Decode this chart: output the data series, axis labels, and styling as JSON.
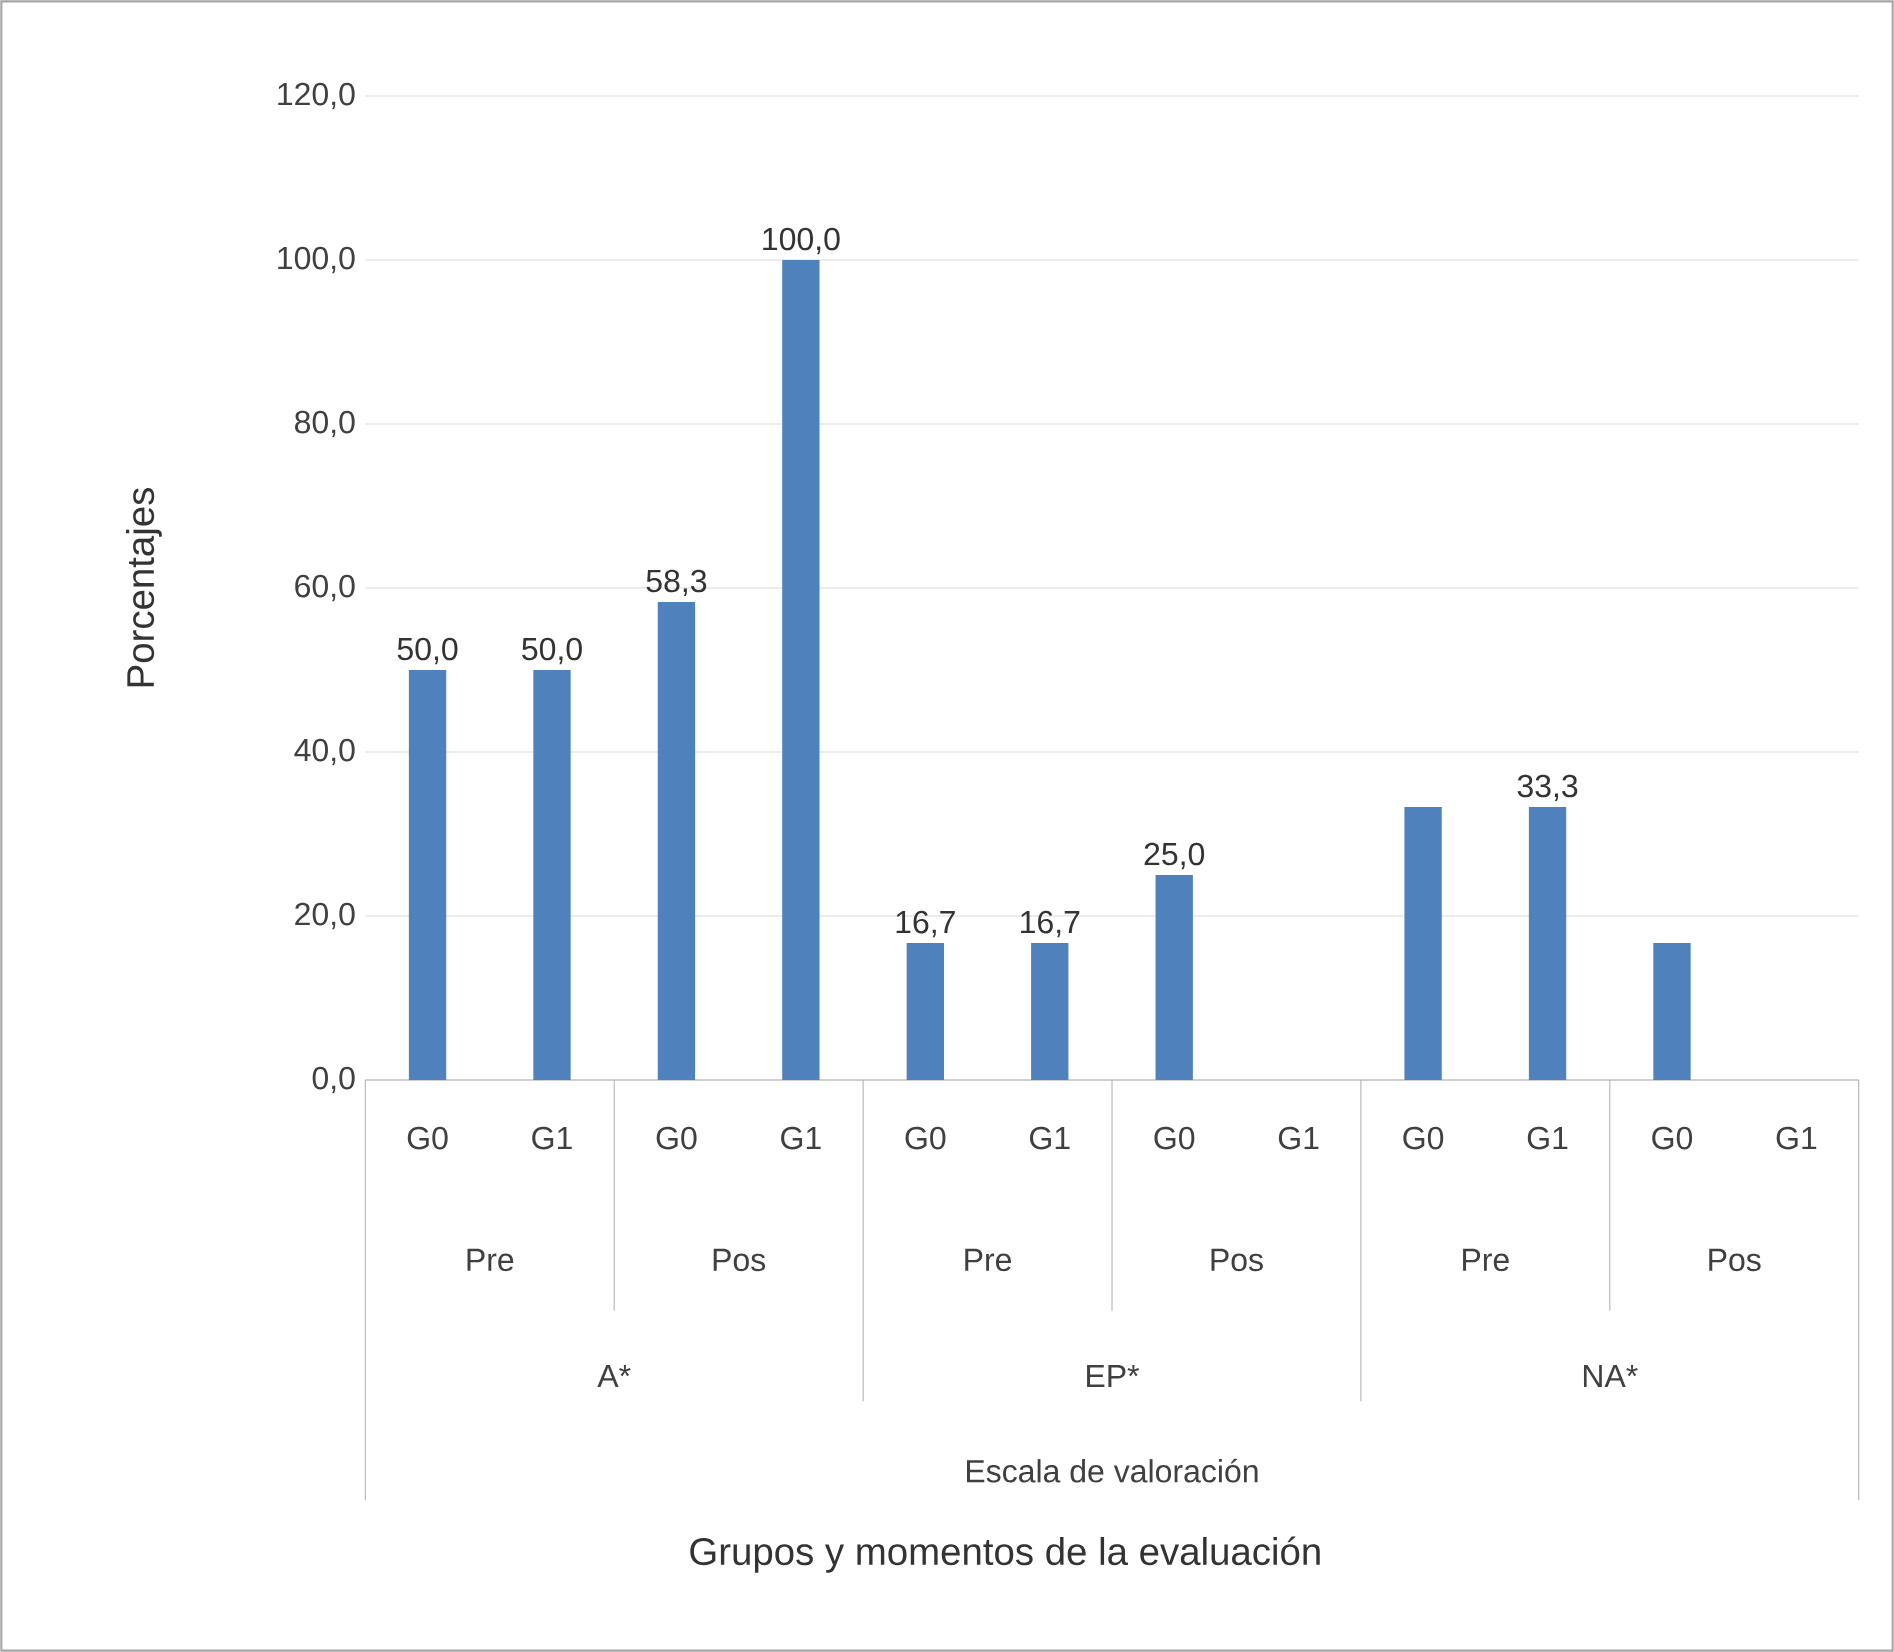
{
  "chart_data": {
    "type": "bar",
    "ylabel": "Porcentajes",
    "categories": [
      "G0",
      "G1",
      "G0",
      "G1",
      "G0",
      "G1",
      "G0",
      "G1",
      "G0",
      "G1",
      "G0",
      "G1"
    ],
    "values": [
      50.0,
      50.0,
      58.3,
      100.0,
      16.7,
      16.7,
      25.0,
      0,
      33.3,
      33.3,
      16.7,
      0
    ],
    "value_labels": [
      "50,0",
      "50,0",
      "58,3",
      "100,0",
      "16,7",
      "16,7",
      "25,0",
      null,
      null,
      "33,3",
      null,
      null
    ],
    "color": "#4f81bd",
    "ylim": [
      0,
      120
    ],
    "yticks": [
      {
        "value": 0,
        "label": "0,0"
      },
      {
        "value": 20,
        "label": "20,0"
      },
      {
        "value": 40,
        "label": "40,0"
      },
      {
        "value": 60,
        "label": "60,0"
      },
      {
        "value": 80,
        "label": "80,0"
      },
      {
        "value": 100,
        "label": "100,0"
      },
      {
        "value": 120,
        "label": "120,0"
      }
    ],
    "grid": "y",
    "annotations": [
      "Pre",
      "Pos",
      "Pre",
      "Pos",
      "Pre",
      "Pos",
      "A*",
      "EP*",
      "NA*",
      "Escala de valoración",
      "Grupos y momentos de la evaluación"
    ]
  }
}
